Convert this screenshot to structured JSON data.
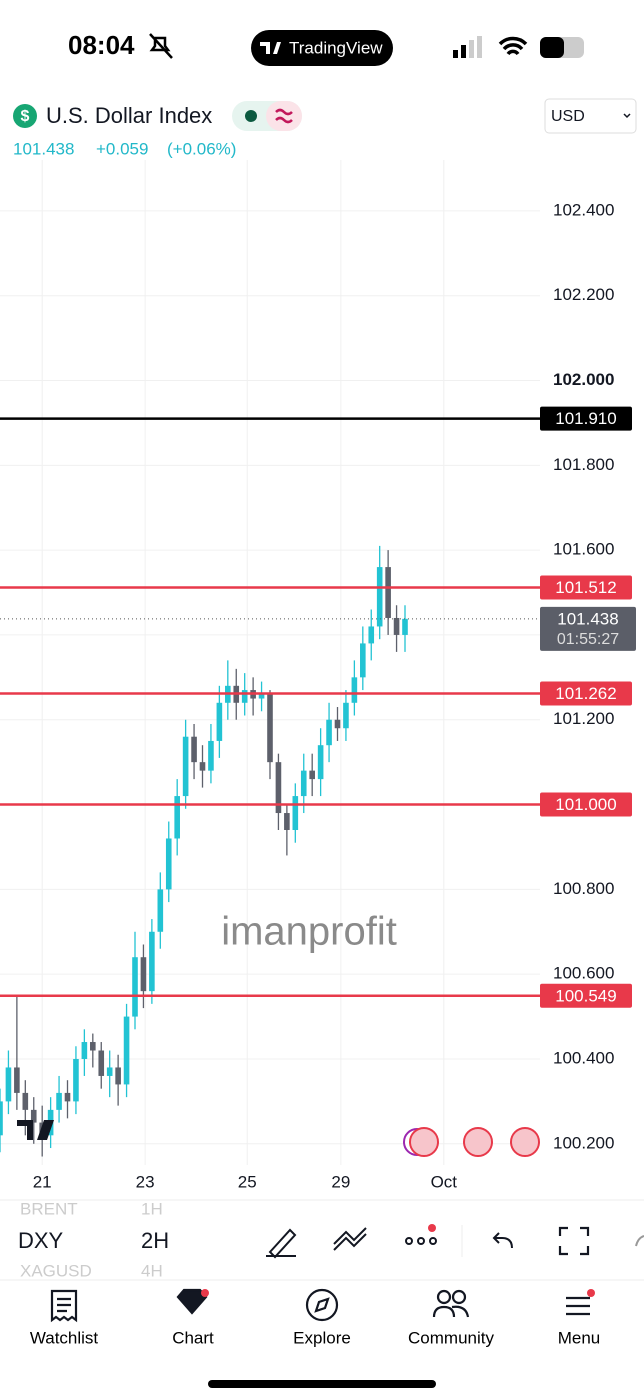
{
  "status_bar": {
    "time": "08:04",
    "app": "TradingView"
  },
  "header": {
    "icon_symbol": "$",
    "symbol_name": "U.S. Dollar Index",
    "price": "101.438",
    "change": "+0.059",
    "change_pct": "(+0.06%)",
    "currency": "USD"
  },
  "watermark": "imanprofit",
  "chart_data": {
    "type": "candlestick",
    "up_color": "#22c3d3",
    "down_color": "#5d606b",
    "grid": true,
    "x": [
      0,
      1,
      2,
      3,
      4,
      5,
      6,
      7,
      8,
      9,
      10,
      11,
      12,
      13,
      14,
      15,
      16,
      17,
      18,
      19,
      20,
      21,
      22,
      23,
      24,
      25,
      26,
      27,
      28,
      29,
      30,
      31,
      32,
      33,
      34,
      35,
      36,
      37,
      38,
      39,
      40,
      41,
      42,
      43,
      44,
      45,
      46,
      47,
      48
    ],
    "open": [
      100.22,
      100.3,
      100.38,
      100.32,
      100.28,
      100.25,
      100.22,
      100.28,
      100.32,
      100.3,
      100.4,
      100.44,
      100.42,
      100.36,
      100.38,
      100.34,
      100.5,
      100.64,
      100.56,
      100.7,
      100.8,
      100.92,
      101.02,
      101.16,
      101.1,
      101.08,
      101.15,
      101.24,
      101.28,
      101.24,
      101.27,
      101.25,
      101.26,
      101.1,
      100.98,
      100.94,
      101.02,
      101.08,
      101.06,
      101.14,
      101.2,
      101.18,
      101.24,
      101.3,
      101.38,
      101.42,
      101.56,
      101.44,
      101.4
    ],
    "high": [
      100.33,
      100.42,
      100.55,
      100.35,
      100.31,
      100.29,
      100.31,
      100.36,
      100.35,
      100.43,
      100.47,
      100.46,
      100.44,
      100.42,
      100.41,
      100.53,
      100.7,
      100.67,
      100.73,
      100.84,
      100.96,
      101.06,
      101.2,
      101.19,
      101.14,
      101.19,
      101.28,
      101.34,
      101.32,
      101.31,
      101.3,
      101.29,
      101.27,
      101.12,
      101.0,
      101.05,
      101.12,
      101.12,
      101.18,
      101.24,
      101.23,
      101.27,
      101.34,
      101.42,
      101.46,
      101.61,
      101.6,
      101.47,
      101.47
    ],
    "low": [
      100.18,
      100.27,
      100.28,
      100.22,
      100.2,
      100.17,
      100.19,
      100.25,
      100.26,
      100.27,
      100.36,
      100.38,
      100.33,
      100.31,
      100.29,
      100.31,
      100.47,
      100.52,
      100.53,
      100.66,
      100.77,
      100.88,
      100.99,
      101.06,
      101.04,
      101.05,
      101.11,
      101.2,
      101.2,
      101.21,
      101.21,
      101.22,
      101.06,
      100.94,
      100.88,
      100.91,
      100.98,
      101.02,
      101.02,
      101.1,
      101.15,
      101.15,
      101.21,
      101.27,
      101.34,
      101.39,
      101.4,
      101.36,
      101.36
    ],
    "close": [
      100.3,
      100.38,
      100.32,
      100.28,
      100.25,
      100.22,
      100.28,
      100.32,
      100.3,
      100.4,
      100.44,
      100.42,
      100.36,
      100.38,
      100.34,
      100.5,
      100.64,
      100.56,
      100.7,
      100.8,
      100.92,
      101.02,
      101.16,
      101.1,
      101.08,
      101.15,
      101.24,
      101.28,
      101.24,
      101.27,
      101.25,
      101.26,
      101.1,
      100.98,
      100.94,
      101.02,
      101.08,
      101.06,
      101.14,
      101.2,
      101.18,
      101.24,
      101.3,
      101.38,
      101.42,
      101.56,
      101.44,
      101.4,
      101.438
    ],
    "xlim": [
      0,
      64
    ],
    "xticks": [
      {
        "value": 5,
        "label": "21"
      },
      {
        "value": 17.2,
        "label": "23"
      },
      {
        "value": 29.3,
        "label": "25"
      },
      {
        "value": 40.4,
        "label": "29"
      },
      {
        "value": 52.6,
        "label": "Oct"
      }
    ],
    "ylim": [
      100.15,
      102.52
    ],
    "yticks": [
      {
        "value": 100.2,
        "label": "100.200"
      },
      {
        "value": 100.4,
        "label": "100.400"
      },
      {
        "value": 100.6,
        "label": "100.600"
      },
      {
        "value": 100.8,
        "label": "100.800"
      },
      {
        "value": 101.0,
        "label": "101.000"
      },
      {
        "value": 101.2,
        "label": "101.200"
      },
      {
        "value": 101.4,
        "label": "101.400"
      },
      {
        "value": 101.6,
        "label": "101.600"
      },
      {
        "value": 101.8,
        "label": "101.800"
      },
      {
        "value": 102.0,
        "label": "102.000"
      },
      {
        "value": 102.2,
        "label": "102.200"
      },
      {
        "value": 102.4,
        "label": "102.400"
      }
    ],
    "levels": [
      {
        "value": 101.91,
        "label": "101.910",
        "color": "#000000"
      },
      {
        "value": 101.512,
        "label": "101.512",
        "color": "#e8394a"
      },
      {
        "value": 101.262,
        "label": "101.262",
        "color": "#e8394a"
      },
      {
        "value": 101.0,
        "label": "101.000",
        "color": "#e8394a"
      },
      {
        "value": 100.549,
        "label": "100.549",
        "color": "#e8394a"
      }
    ],
    "current": {
      "value": 101.438,
      "label": "101.438",
      "countdown": "01:55:27"
    }
  },
  "toolbar": {
    "symbol": "DXY",
    "interval": "2H",
    "above_symbol": "BRENT",
    "above_interval": "1H",
    "below_symbol": "XAGUSD",
    "below_interval": "4H"
  },
  "nav": [
    "Watchlist",
    "Chart",
    "Explore",
    "Community",
    "Menu"
  ]
}
